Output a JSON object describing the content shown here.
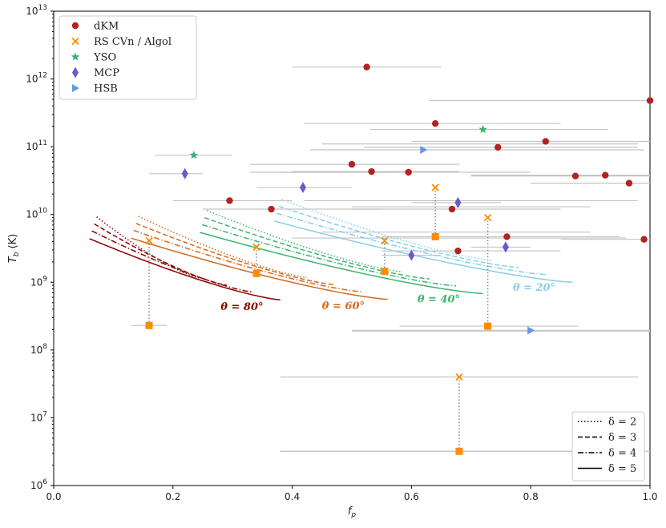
{
  "chart_data": {
    "type": "scatter",
    "title": "",
    "xlabel": "f_p",
    "ylabel": "T_b (K)",
    "xlim": [
      0.0,
      1.0
    ],
    "ylim_log10": [
      6,
      13
    ],
    "yscale": "log",
    "x_ticks": [
      "0.0",
      "0.2",
      "0.4",
      "0.6",
      "0.8",
      "1.0"
    ],
    "y_ticks": [
      {
        "base": "10",
        "exp": "6"
      },
      {
        "base": "10",
        "exp": "7"
      },
      {
        "base": "10",
        "exp": "8"
      },
      {
        "base": "10",
        "exp": "9"
      },
      {
        "base": "10",
        "exp": "10"
      },
      {
        "base": "10",
        "exp": "11"
      },
      {
        "base": "10",
        "exp": "12"
      },
      {
        "base": "10",
        "exp": "13"
      }
    ],
    "grid": false,
    "legend_placement": "top-left",
    "legend": [
      {
        "label": "dKM",
        "marker": "circle",
        "color": "#b22222"
      },
      {
        "label": "RS CVn / Algol",
        "marker": "x",
        "color": "#ff8c00"
      },
      {
        "label": "YSO",
        "marker": "star",
        "color": "#3cb371"
      },
      {
        "label": "MCP",
        "marker": "diamond",
        "color": "#6a5acd"
      },
      {
        "label": "HSB",
        "marker": "triangle-right",
        "color": "#6495ed"
      }
    ],
    "style_legend_placement": "bottom-right",
    "style_legend": [
      {
        "label": "δ = 2",
        "dash": "dotted"
      },
      {
        "label": "δ = 3",
        "dash": "dashed"
      },
      {
        "label": "δ = 4",
        "dash": "dashdot"
      },
      {
        "label": "δ = 5",
        "dash": "solid"
      }
    ],
    "series": [
      {
        "name": "dKM",
        "points": [
          {
            "x": 0.525,
            "y": 1500000000000.0,
            "xerr": [
              0.4,
              0.65
            ]
          },
          {
            "x": 0.64,
            "y": 220000000000.0,
            "xerr": [
              0.42,
              0.85
            ]
          },
          {
            "x": 0.825,
            "y": 120000000000.0,
            "xerr": [
              0.6,
              1.0
            ]
          },
          {
            "x": 0.745,
            "y": 98000000000.0,
            "xerr": [
              0.52,
              0.98
            ]
          },
          {
            "x": 1.0,
            "y": 480000000000.0,
            "xerr": [
              0.63,
              1.0
            ]
          },
          {
            "x": 0.5,
            "y": 55000000000.0,
            "xerr": [
              0.33,
              0.68
            ]
          },
          {
            "x": 0.533,
            "y": 43000000000.0,
            "xerr": [
              0.4,
              0.68
            ]
          },
          {
            "x": 0.595,
            "y": 42000000000.0,
            "xerr": [
              0.38,
              0.8
            ]
          },
          {
            "x": 0.875,
            "y": 37000000000.0,
            "xerr": [
              0.7,
              1.0
            ]
          },
          {
            "x": 0.925,
            "y": 38000000000.0,
            "xerr": [
              0.7,
              1.0
            ]
          },
          {
            "x": 0.965,
            "y": 29000000000.0,
            "xerr": [
              0.8,
              1.0
            ]
          },
          {
            "x": 0.295,
            "y": 16000000000.0,
            "xerr": [
              0.2,
              0.4
            ]
          },
          {
            "x": 0.365,
            "y": 12000000000.0,
            "xerr": [
              0.25,
              0.55
            ]
          },
          {
            "x": 0.668,
            "y": 12000000000.0,
            "xerr": [
              0.5,
              0.85
            ]
          },
          {
            "x": 0.76,
            "y": 4700000000.0,
            "xerr": [
              0.55,
              0.95
            ]
          },
          {
            "x": 0.678,
            "y": 2900000000.0,
            "xerr": [
              0.55,
              0.85
            ]
          },
          {
            "x": 0.99,
            "y": 4300000000.0,
            "xerr": [
              0.85,
              1.0
            ]
          }
        ]
      },
      {
        "name": "RS CVn / Algol",
        "points": [
          {
            "x": 0.16,
            "y": 4100000000.0
          },
          {
            "x": 0.34,
            "y": 3300000000.0
          },
          {
            "x": 0.555,
            "y": 4100000000.0
          },
          {
            "x": 0.64,
            "y": 25000000000.0
          },
          {
            "x": 0.728,
            "y": 9000000000.0
          },
          {
            "x": 0.68,
            "y": 40000000.0
          }
        ]
      },
      {
        "name": "YSO",
        "points": [
          {
            "x": 0.235,
            "y": 75000000000.0,
            "xerr": [
              0.17,
              0.3
            ]
          },
          {
            "x": 0.72,
            "y": 180000000000.0,
            "xerr": [
              0.53,
              0.93
            ]
          }
        ]
      },
      {
        "name": "MCP",
        "points": [
          {
            "x": 0.22,
            "y": 40000000000.0,
            "xerr": [
              0.16,
              0.25
            ]
          },
          {
            "x": 0.418,
            "y": 25000000000.0,
            "xerr": [
              0.34,
              0.5
            ]
          },
          {
            "x": 0.678,
            "y": 15000000000.0,
            "xerr": [
              0.6,
              0.75
            ]
          },
          {
            "x": 0.6,
            "y": 2500000000.0,
            "xerr": [
              0.55,
              0.65
            ]
          },
          {
            "x": 0.758,
            "y": 3300000000.0,
            "xerr": [
              0.7,
              0.8
            ]
          }
        ]
      },
      {
        "name": "HSB",
        "points": [
          {
            "x": 0.62,
            "y": 90000000000.0,
            "xerr": [
              0.43,
              0.99
            ]
          },
          {
            "x": 0.8,
            "y": 195000000.0,
            "xerr": [
              0.5,
              1.0
            ]
          }
        ]
      }
    ],
    "derived_points": [
      {
        "x": 0.16,
        "y": 230000000.0,
        "from_y": 4100000000.0,
        "xerr": [
          0.13,
          0.19
        ]
      },
      {
        "x": 0.34,
        "y": 1350000000.0,
        "from_y": 3300000000.0
      },
      {
        "x": 0.555,
        "y": 1450000000.0,
        "from_y": 4100000000.0
      },
      {
        "x": 0.64,
        "y": 4700000000.0,
        "from_y": 25000000000.0
      },
      {
        "x": 0.728,
        "y": 225000000.0,
        "from_y": 9000000000.0,
        "xerr": [
          0.58,
          0.88
        ]
      },
      {
        "x": 0.68,
        "y": 3200000.0,
        "from_y": 40000000.0,
        "xerr": [
          0.38,
          0.98
        ]
      }
    ],
    "background_xerr_bars": [
      {
        "y": 190000000.0,
        "xerr": [
          0.5,
          1.0
        ]
      },
      {
        "y": 40000000.0,
        "xerr": [
          0.38,
          0.98
        ]
      },
      {
        "y": 3200000.0,
        "xerr": [
          0.38,
          1.0
        ]
      },
      {
        "y": 16000000000.0,
        "xerr": [
          0.42,
          0.98
        ]
      },
      {
        "y": 13000000000.0,
        "xerr": [
          0.5,
          0.9
        ]
      },
      {
        "y": 4500000000.0,
        "xerr": [
          0.4,
          0.96
        ]
      },
      {
        "y": 5500000000.0,
        "xerr": [
          0.45,
          0.9
        ]
      },
      {
        "y": 42000000000.0,
        "xerr": [
          0.33,
          0.58
        ]
      },
      {
        "y": 38000000000.0,
        "xerr": [
          0.7,
          1.0
        ]
      },
      {
        "y": 110000000000.0,
        "xerr": [
          0.45,
          0.98
        ]
      }
    ],
    "theta_curves": [
      {
        "label": "θ = 80°",
        "color": "#8b0000",
        "x0": 0.06,
        "x1": 0.38,
        "T1": 550000000.0,
        "label_x": 0.28,
        "label_y": 390000000.0
      },
      {
        "label": "θ = 60°",
        "color": "#d2691e",
        "x0": 0.13,
        "x1": 0.56,
        "T1": 560000000.0,
        "label_x": 0.45,
        "label_y": 400000000.0
      },
      {
        "label": "θ = 40°",
        "color": "#3cb371",
        "x0": 0.245,
        "x1": 0.72,
        "T1": 680000000.0,
        "label_x": 0.61,
        "label_y": 500000000.0
      },
      {
        "label": "θ = 20°",
        "color": "#87ceeb",
        "x0": 0.37,
        "x1": 0.87,
        "T1": 1000000000.0,
        "label_x": 0.77,
        "label_y": 750000000.0
      }
    ],
    "delta_factors": [
      {
        "delta": 2,
        "dash": "dotted",
        "factor": 2.1
      },
      {
        "delta": 3,
        "dash": "dashed",
        "factor": 1.65
      },
      {
        "delta": 4,
        "dash": "dashdot",
        "factor": 1.3
      },
      {
        "delta": 5,
        "dash": "solid",
        "factor": 1.0
      }
    ],
    "curve_shape": {
      "T0_over_T1": 8.0,
      "exponent": 1.3
    }
  }
}
